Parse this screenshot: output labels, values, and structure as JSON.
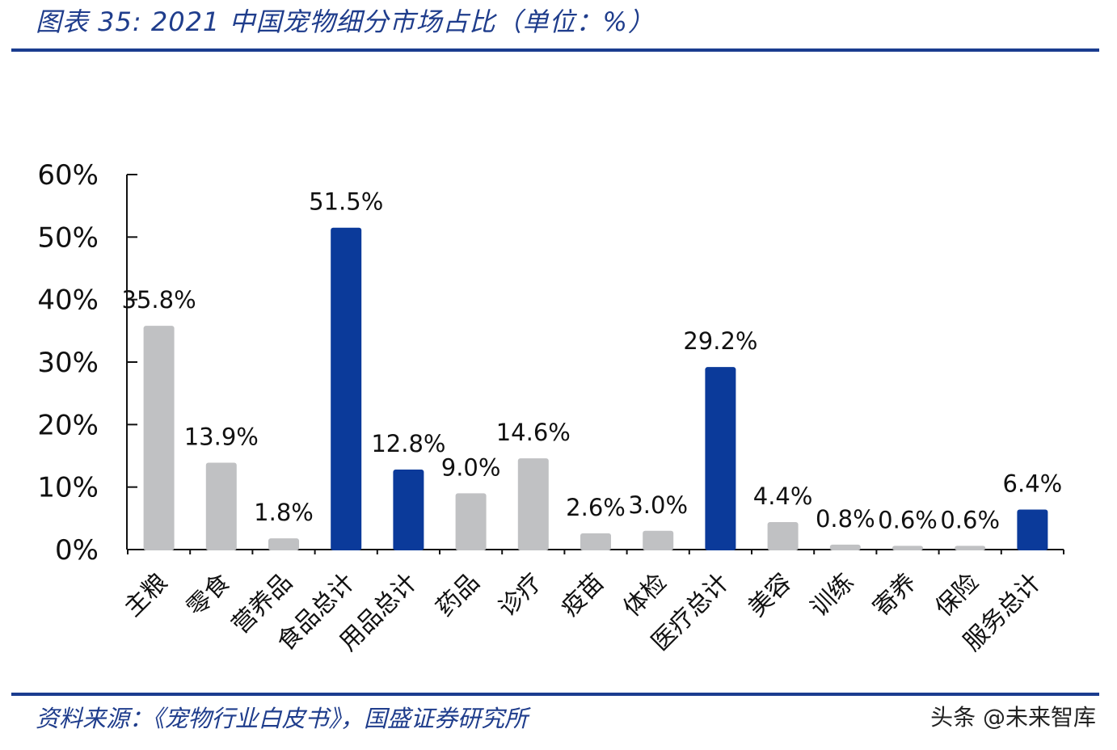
{
  "header": {
    "title": "图表 35:  2021 中国宠物细分市场占比（单位：%）"
  },
  "footer": {
    "source": "资料来源：《宠物行业白皮书》，国盛证券研究所",
    "watermark": "头条 @未来智库"
  },
  "colors": {
    "highlight": "#0b3a9a",
    "normal": "#c0c1c3",
    "axis": "#111111",
    "rule": "#1a3c8f"
  },
  "chart_data": {
    "type": "bar",
    "categories": [
      "主粮",
      "零食",
      "营养品",
      "食品总计",
      "用品总计",
      "药品",
      "诊疗",
      "疫苗",
      "体检",
      "医疗总计",
      "美容",
      "训练",
      "寄养",
      "保险",
      "服务总计"
    ],
    "values": [
      35.8,
      13.9,
      1.8,
      51.5,
      12.8,
      9.0,
      14.6,
      2.6,
      3.0,
      29.2,
      4.4,
      0.8,
      0.6,
      0.6,
      6.4
    ],
    "value_labels": [
      "35.8%",
      "13.9%",
      "1.8%",
      "51.5%",
      "12.8%",
      "9.0%",
      "14.6%",
      "2.6%",
      "3.0%",
      "29.2%",
      "4.4%",
      "0.8%",
      "0.6%",
      "0.6%",
      "6.4%"
    ],
    "highlight": [
      false,
      false,
      false,
      true,
      true,
      false,
      false,
      false,
      false,
      true,
      false,
      false,
      false,
      false,
      true
    ],
    "y_ticks": [
      "0%",
      "10%",
      "20%",
      "30%",
      "40%",
      "50%",
      "60%"
    ],
    "ylim": [
      0,
      60
    ],
    "xlabel": "",
    "ylabel": "",
    "grid": false,
    "legend": "none"
  }
}
